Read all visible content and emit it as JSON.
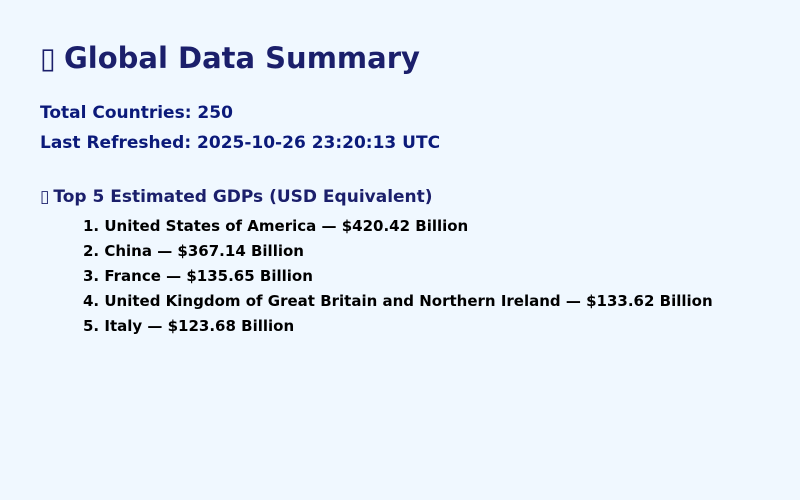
{
  "header": {
    "title_icon": "▯",
    "title": "Global Data Summary"
  },
  "summary": {
    "total_countries": "Total Countries: 250",
    "last_refreshed": "Last Refreshed: 2025-10-26 23:20:13 UTC"
  },
  "top_gdps": {
    "icon": "▯",
    "heading": "Top 5 Estimated GDPs (USD Equivalent)",
    "items": [
      "1. United States of America — $420.42 Billion",
      "2. China — $367.14 Billion",
      "3. France — $135.65 Billion",
      "4. United Kingdom of Great Britain and Northern Ireland — $133.62 Billion",
      "5. Italy — $123.68 Billion"
    ]
  }
}
